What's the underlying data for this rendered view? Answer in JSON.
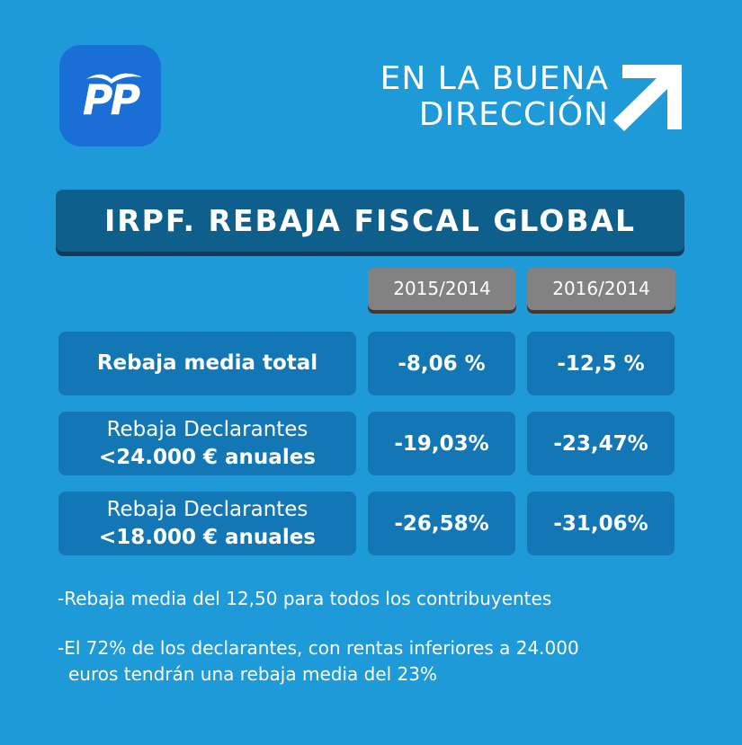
{
  "logo": {
    "text": "PP"
  },
  "slogan": {
    "line1": "EN LA BUENA",
    "line2": "DIRECCIÓN"
  },
  "title": "IRPF. REBAJA FISCAL GLOBAL",
  "columns": [
    "2015/2014",
    "2016/2014"
  ],
  "rows": [
    {
      "label_line1": "",
      "label_line2": "Rebaja media total",
      "values": [
        "-8,06 %",
        "-12,5 %"
      ]
    },
    {
      "label_line1": "Rebaja Declarantes",
      "label_line2": "<24.000 € anuales",
      "values": [
        "-19,03%",
        "-23,47%"
      ]
    },
    {
      "label_line1": "Rebaja Declarantes",
      "label_line2": "<18.000 € anuales",
      "values": [
        "-26,58%",
        "-31,06%"
      ]
    }
  ],
  "notes": [
    {
      "line1": "-Rebaja media del 12,50 para todos los contribuyentes",
      "line2": ""
    },
    {
      "line1": "-El 72% de los declarantes, con rentas inferiores a 24.000",
      "line2": "euros tendrán una rebaja media del 23%"
    }
  ],
  "colors": {
    "background": "#1e9ad8",
    "title_bar": "#0f5f8d",
    "cell": "#1377b5",
    "header": "#828282",
    "logo": "#1a6fd6"
  }
}
